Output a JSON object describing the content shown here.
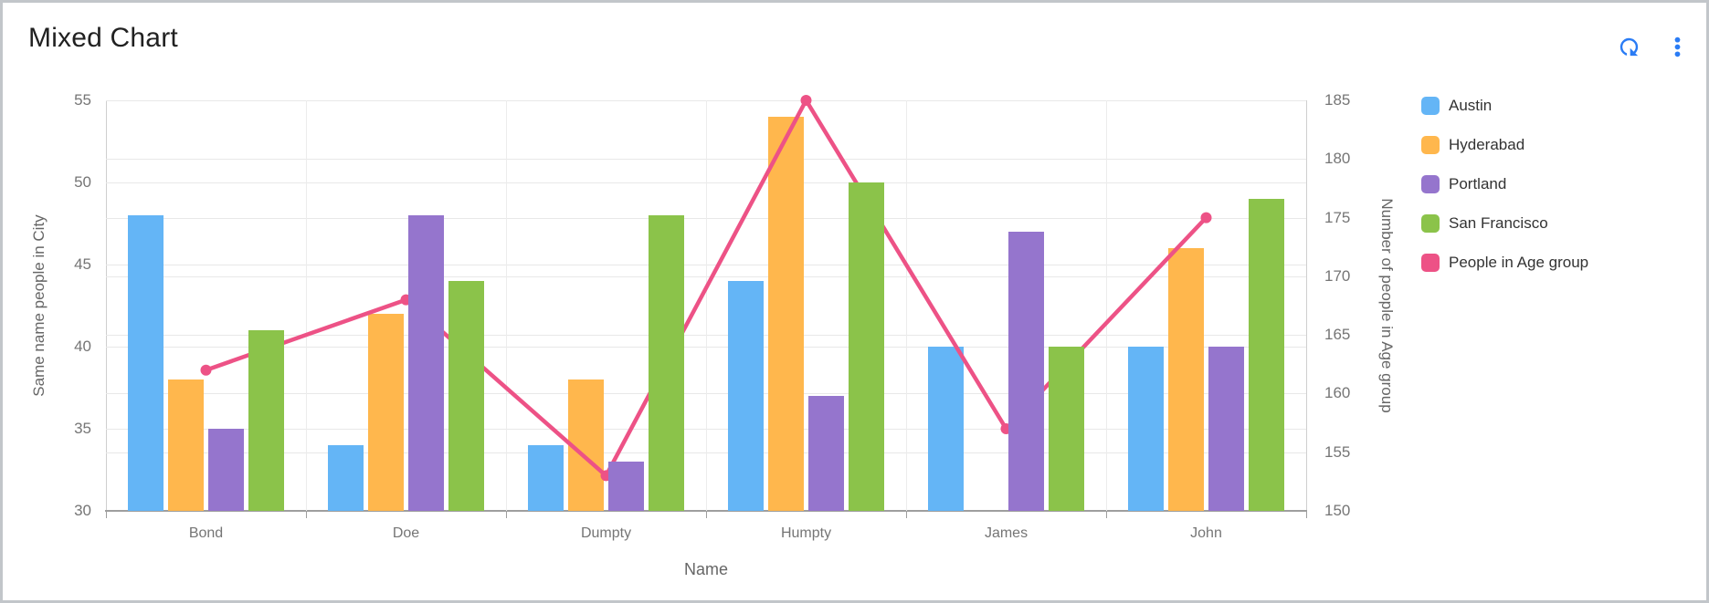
{
  "card": {
    "toolbar": {
      "refresh_icon": "refresh",
      "menu_icon": "more-vert",
      "icon_color": "#2a7cf5"
    }
  },
  "chart_data": {
    "type": "mixed-bar-line",
    "title": "Mixed Chart",
    "categories": [
      "Bond",
      "Doe",
      "Dumpty",
      "Humpty",
      "James",
      "John"
    ],
    "series": [
      {
        "name": "Austin",
        "type": "bar",
        "axis": "left",
        "color": "#64b5f6",
        "z": 1,
        "values": [
          48,
          34,
          34,
          44,
          40,
          40
        ]
      },
      {
        "name": "Hyderabad",
        "type": "bar",
        "axis": "left",
        "color": "#ffb74d",
        "z": 1,
        "values": [
          38,
          42,
          38,
          54,
          null,
          46
        ]
      },
      {
        "name": "Portland",
        "type": "bar",
        "axis": "left",
        "color": "#9575cd",
        "z": 3,
        "values": [
          35,
          48,
          33,
          37,
          47,
          40
        ]
      },
      {
        "name": "San Francisco",
        "type": "bar",
        "axis": "left",
        "color": "#8bc34a",
        "z": 3,
        "values": [
          41,
          44,
          48,
          50,
          40,
          49
        ]
      },
      {
        "name": "People in Age group",
        "type": "line",
        "axis": "right",
        "color": "#ed5286",
        "z": 2,
        "values": [
          162,
          168,
          153,
          185,
          157,
          175
        ]
      }
    ],
    "x_axis": {
      "label": "Name"
    },
    "left_axis": {
      "label": "Same name people in City",
      "min": 30,
      "max": 55,
      "ticks": [
        30,
        35,
        40,
        45,
        50,
        55
      ]
    },
    "right_axis": {
      "label": "Number of people in Age group",
      "min": 150,
      "max": 185,
      "ticks": [
        150,
        155,
        160,
        165,
        170,
        175,
        180,
        185
      ]
    },
    "legend_position": "right",
    "grid": true
  }
}
